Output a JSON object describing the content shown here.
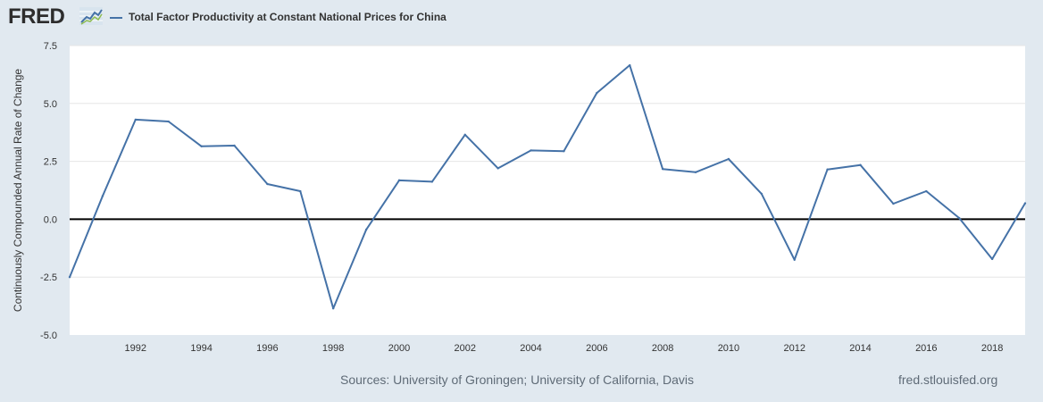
{
  "header": {
    "logo": "FRED",
    "logo_icon": "line-chart-icon",
    "series_title": "Total Factor Productivity at Constant National Prices for China"
  },
  "footer": {
    "sources": "Sources: University of Groningen; University of California, Davis",
    "site": "fred.stlouisfed.org"
  },
  "colors": {
    "background": "#e1e9f0",
    "plot": "#ffffff",
    "series": "#4572a7",
    "zero_line": "#000000",
    "grid": "#e6e6e6"
  },
  "chart_data": {
    "type": "line",
    "title": "Total Factor Productivity at Constant National Prices for China",
    "ylabel": "Continuously Compounded Annual Rate of Change",
    "xlabel": "",
    "xlim": [
      1990,
      2019
    ],
    "ylim": [
      -5.0,
      7.5
    ],
    "yticks": [
      "-5.0",
      "-2.5",
      "0.0",
      "2.5",
      "5.0",
      "7.5"
    ],
    "xticks": [
      "1992",
      "1994",
      "1996",
      "1998",
      "2000",
      "2002",
      "2004",
      "2006",
      "2008",
      "2010",
      "2012",
      "2014",
      "2016",
      "2018"
    ],
    "grid": true,
    "series": [
      {
        "name": "Total Factor Productivity at Constant National Prices for China",
        "x": [
          1990,
          1991,
          1992,
          1993,
          1994,
          1995,
          1996,
          1997,
          1998,
          1999,
          2000,
          2001,
          2002,
          2003,
          2004,
          2005,
          2006,
          2007,
          2008,
          2009,
          2010,
          2011,
          2012,
          2013,
          2014,
          2015,
          2016,
          2017,
          2018,
          2019
        ],
        "values": [
          -2.5,
          1.0,
          4.3,
          4.22,
          3.15,
          3.18,
          1.52,
          1.21,
          -3.85,
          -0.45,
          1.68,
          1.62,
          3.65,
          2.2,
          2.97,
          2.94,
          5.45,
          6.65,
          2.17,
          2.03,
          2.6,
          1.1,
          -1.75,
          2.15,
          2.34,
          0.67,
          1.21,
          0.05,
          -1.72,
          0.69
        ]
      }
    ]
  }
}
